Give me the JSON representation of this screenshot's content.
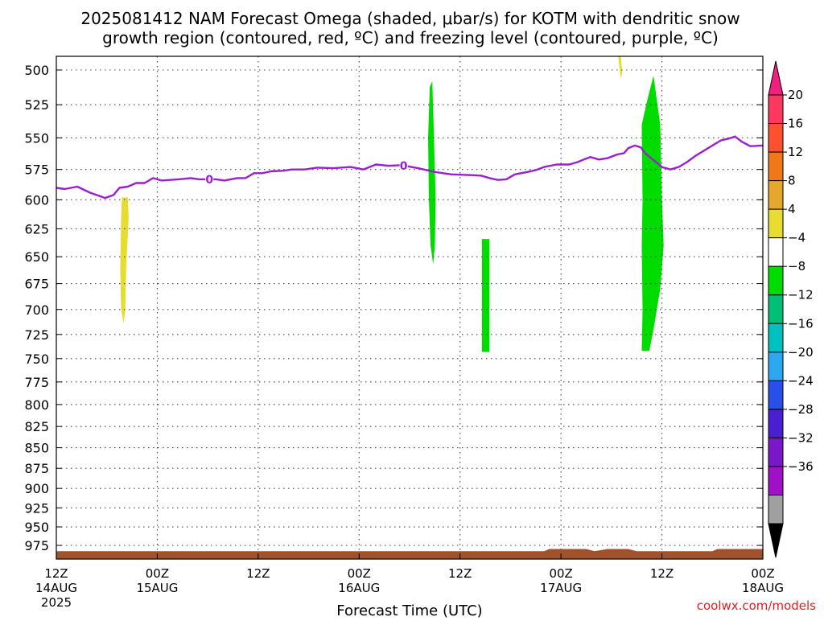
{
  "title_line1": "2025081412 NAM Forecast Omega (shaded, μbar/s) for KOTM with dendritic snow",
  "title_line2": "growth region (contoured, red, ºC) and freezing level (contoured, purple, ºC)",
  "xlabel": "Forecast Time (UTC)",
  "credit": "coolwx.com/models",
  "chart_data": {
    "type": "area",
    "x_range_hours": [
      0,
      84
    ],
    "y_range_hpa": [
      490,
      990
    ],
    "y_scale": "log-pressure",
    "grid": "dotted",
    "y_ticks": [
      "500",
      "525",
      "550",
      "575",
      "600",
      "625",
      "650",
      "675",
      "700",
      "725",
      "750",
      "775",
      "800",
      "825",
      "850",
      "875",
      "900",
      "925",
      "950",
      "975"
    ],
    "x_ticks": [
      {
        "h": 0,
        "l1": "12Z",
        "l2": "14AUG",
        "l3": "2025"
      },
      {
        "h": 12,
        "l1": "00Z",
        "l2": "15AUG",
        "l3": ""
      },
      {
        "h": 24,
        "l1": "12Z",
        "l2": "",
        "l3": ""
      },
      {
        "h": 36,
        "l1": "00Z",
        "l2": "16AUG",
        "l3": ""
      },
      {
        "h": 48,
        "l1": "12Z",
        "l2": "",
        "l3": ""
      },
      {
        "h": 60,
        "l1": "00Z",
        "l2": "17AUG",
        "l3": ""
      },
      {
        "h": 72,
        "l1": "12Z",
        "l2": "",
        "l3": ""
      },
      {
        "h": 84,
        "l1": "00Z",
        "l2": "18AUG",
        "l3": ""
      }
    ],
    "freezing_level": {
      "name": "0",
      "color": "#9b1fd2",
      "labels_at_hours": [
        18.2,
        41.3
      ],
      "points": [
        [
          0,
          590
        ],
        [
          1,
          591
        ],
        [
          2.5,
          589
        ],
        [
          4,
          594
        ],
        [
          5.8,
          598.5
        ],
        [
          6.8,
          596
        ],
        [
          7.5,
          590
        ],
        [
          8.5,
          589
        ],
        [
          9.5,
          586
        ],
        [
          10.5,
          586
        ],
        [
          11.5,
          582
        ],
        [
          12.5,
          584
        ],
        [
          14.5,
          583
        ],
        [
          16,
          582
        ],
        [
          17,
          583
        ],
        [
          19,
          583
        ],
        [
          20,
          584
        ],
        [
          21.5,
          582
        ],
        [
          22.5,
          582
        ],
        [
          23.5,
          578
        ],
        [
          24.5,
          578
        ],
        [
          25.5,
          576.5
        ],
        [
          27,
          576
        ],
        [
          28,
          575
        ],
        [
          29.5,
          575
        ],
        [
          31,
          573.5
        ],
        [
          33,
          574
        ],
        [
          35,
          573
        ],
        [
          36.5,
          575
        ],
        [
          38,
          571
        ],
        [
          39.5,
          572
        ],
        [
          41,
          571.5
        ],
        [
          43,
          574
        ],
        [
          45,
          577
        ],
        [
          47,
          579
        ],
        [
          49,
          579.5
        ],
        [
          50.5,
          580
        ],
        [
          51.5,
          582
        ],
        [
          52.5,
          583.5
        ],
        [
          53.5,
          583
        ],
        [
          54.5,
          579
        ],
        [
          56,
          577
        ],
        [
          57,
          575.5
        ],
        [
          58,
          573
        ],
        [
          59.5,
          571
        ],
        [
          61,
          571
        ],
        [
          62,
          569
        ],
        [
          62.7,
          567
        ],
        [
          63.5,
          565
        ],
        [
          64.5,
          567
        ],
        [
          65.5,
          566
        ],
        [
          66.7,
          563
        ],
        [
          67.5,
          562
        ],
        [
          68,
          558
        ],
        [
          68.8,
          556
        ],
        [
          69.5,
          557.5
        ],
        [
          70,
          562
        ],
        [
          71,
          567.5
        ],
        [
          72,
          573
        ],
        [
          73,
          575
        ],
        [
          74,
          573
        ],
        [
          75,
          569
        ],
        [
          76,
          564
        ],
        [
          77,
          560
        ],
        [
          78,
          556
        ],
        [
          79,
          552
        ],
        [
          80,
          550.5
        ],
        [
          80.7,
          549
        ],
        [
          81.5,
          553
        ],
        [
          82.5,
          556.5
        ],
        [
          84,
          556
        ]
      ]
    },
    "omega_regions": [
      {
        "color": "#e6dc32",
        "bin": "4 to 8",
        "points": [
          [
            7.8,
            598
          ],
          [
            8.5,
            598
          ],
          [
            8.6,
            615
          ],
          [
            8.3,
            660
          ],
          [
            8.2,
            700
          ],
          [
            8.0,
            714
          ],
          [
            7.7,
            700
          ],
          [
            7.6,
            660
          ],
          [
            7.7,
            615
          ]
        ]
      },
      {
        "color": "#e6dc32",
        "bin": "4 to 8",
        "points": [
          [
            66.8,
            490
          ],
          [
            67.1,
            490
          ],
          [
            67.3,
            502
          ],
          [
            67.1,
            506
          ],
          [
            66.8,
            490
          ]
        ]
      },
      {
        "color": "#00dc00",
        "bin": "-8 to -4",
        "points": [
          [
            44.4,
            512
          ],
          [
            44.7,
            508
          ],
          [
            44.9,
            550
          ],
          [
            45.1,
            600
          ],
          [
            45.0,
            640
          ],
          [
            44.8,
            657
          ],
          [
            44.5,
            640
          ],
          [
            44.3,
            600
          ],
          [
            44.2,
            550
          ]
        ]
      },
      {
        "color": "#00dc00",
        "bin": "-8 to -4",
        "points": [
          [
            50.6,
            634
          ],
          [
            51.5,
            634
          ],
          [
            51.5,
            743
          ],
          [
            50.6,
            743
          ]
        ]
      },
      {
        "color": "#00dc00",
        "bin": "-8 to -4",
        "points": [
          [
            69.6,
            540
          ],
          [
            70.2,
            523
          ],
          [
            71.0,
            504
          ],
          [
            71.8,
            540
          ],
          [
            72.0,
            600
          ],
          [
            72.2,
            640
          ],
          [
            71.8,
            680
          ],
          [
            71.0,
            720
          ],
          [
            70.5,
            742
          ],
          [
            69.6,
            742
          ],
          [
            69.7,
            700
          ],
          [
            69.6,
            640
          ],
          [
            69.7,
            600
          ]
        ]
      }
    ],
    "terrain": {
      "color": "#a0522d",
      "points": [
        [
          0,
          983
        ],
        [
          58,
          983
        ],
        [
          58.6,
          980
        ],
        [
          63,
          980
        ],
        [
          64,
          983
        ],
        [
          65.5,
          980
        ],
        [
          68,
          980
        ],
        [
          69,
          983
        ],
        [
          78,
          983
        ],
        [
          78.6,
          980
        ],
        [
          84,
          980
        ]
      ]
    },
    "colorbar": {
      "labels": [
        "20",
        "16",
        "12",
        "8",
        "4",
        "−4",
        "−8",
        "−12",
        "−16",
        "−20",
        "−24",
        "−28",
        "−32",
        "−36"
      ],
      "colors": [
        "#ff3860",
        "#ff5030",
        "#f07818",
        "#e6a82c",
        "#e6dc32",
        "#ffffff",
        "#00dc00",
        "#00c078",
        "#00c0c0",
        "#2ca8f0",
        "#2850e8",
        "#4a1fd0",
        "#7a18c8",
        "#a010c8",
        "#a0a0a0"
      ],
      "top_color": "#f02080",
      "bottom_color": "#000000"
    }
  }
}
